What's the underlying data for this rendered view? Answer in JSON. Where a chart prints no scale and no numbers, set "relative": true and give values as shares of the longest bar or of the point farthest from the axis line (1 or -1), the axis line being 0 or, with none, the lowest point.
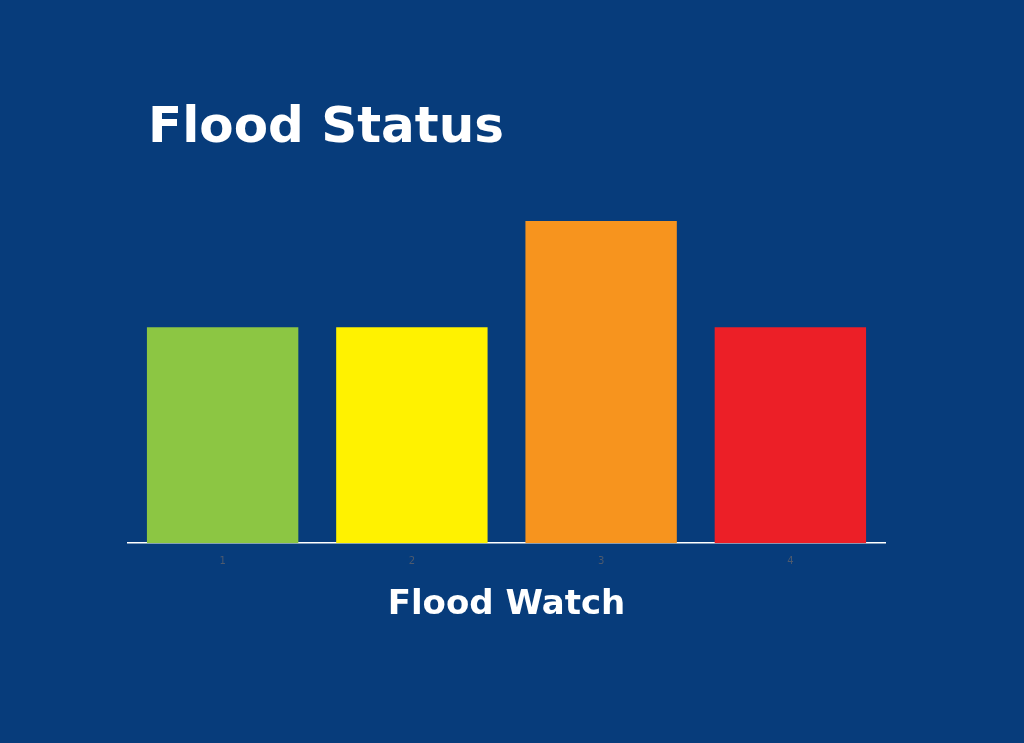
{
  "chart_data": {
    "type": "bar",
    "title": "Flood Status",
    "xlabel": "Flood Watch",
    "relative": true,
    "categories": [
      "1",
      "2",
      "3",
      "4"
    ],
    "values": [
      0.67,
      0.67,
      1,
      0.67
    ],
    "colors": [
      "#8cc643",
      "#fff200",
      "#f7941e",
      "#ec1f27"
    ],
    "grid": false,
    "legend": false
  }
}
